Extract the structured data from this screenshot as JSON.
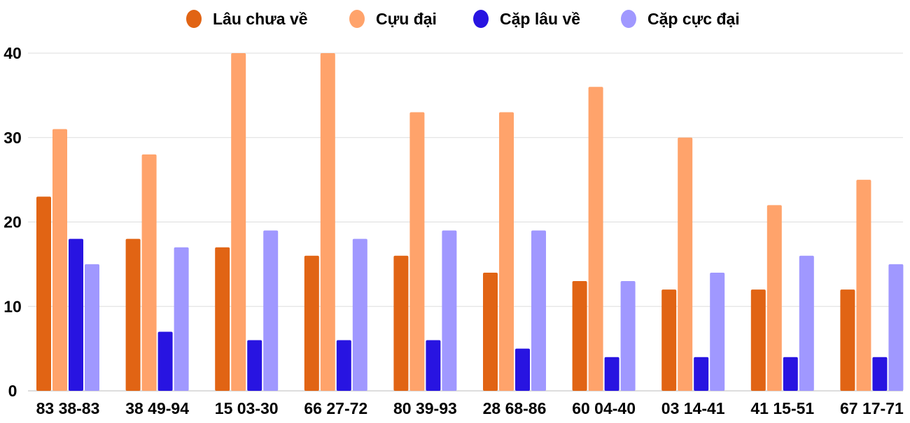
{
  "chart_data": {
    "type": "bar",
    "title": "",
    "xlabel": "",
    "ylabel": "",
    "ylim": [
      0,
      40
    ],
    "yticks": [
      0,
      10,
      20,
      30,
      40
    ],
    "grid": true,
    "legend_position": "top",
    "categories": [
      "83 38-83",
      "38 49-94",
      "15 03-30",
      "66 27-72",
      "80 39-93",
      "28 68-86",
      "60 04-40",
      "03 14-41",
      "41 15-51",
      "67 17-71"
    ],
    "series": [
      {
        "name": "Lâu chưa về",
        "color": "#e16414",
        "values": [
          23,
          18,
          17,
          16,
          16,
          14,
          13,
          12,
          12,
          12
        ]
      },
      {
        "name": "Cựu đại",
        "color": "#ffa36b",
        "values": [
          31,
          28,
          40,
          40,
          33,
          33,
          36,
          30,
          22,
          25
        ]
      },
      {
        "name": "Cặp lâu về",
        "color": "#2814e1",
        "values": [
          18,
          7,
          6,
          6,
          6,
          5,
          4,
          4,
          4,
          4
        ]
      },
      {
        "name": "Cặp cực đại",
        "color": "#a098ff",
        "values": [
          15,
          17,
          19,
          18,
          19,
          19,
          13,
          14,
          16,
          15
        ]
      }
    ]
  }
}
